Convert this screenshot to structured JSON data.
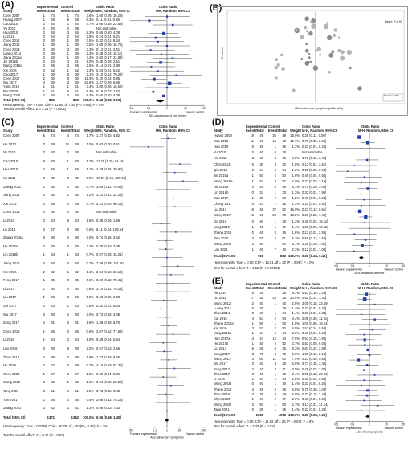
{
  "labels": {
    "A": "(A)",
    "B": "(B)",
    "C": "(C)",
    "D": "(D)",
    "E": "(E)"
  },
  "headers": {
    "study": "Study",
    "experimental": "Experimental",
    "control": "Control",
    "events": "Events",
    "total": "Total",
    "weight": "Weight",
    "or_top": "Odds Ratio",
    "or_sub": "MH, Random, 95% CI",
    "or_sub_d": "M-H, Random, 95% CI",
    "or_sub_e": "M-H, Random, 95% CI"
  },
  "A": {
    "rows": [
      [
        "Chen 2007",
        "1",
        "74",
        "1",
        "74",
        "3.6%",
        "1.00 [0.06, 16.29]"
      ],
      [
        "Huang 2007",
        "1",
        "49",
        "8",
        "49",
        "6.3%",
        "0.11 [0.01, 0.88]"
      ],
      [
        "Cao 2010",
        "2",
        "40",
        "1",
        "40",
        "4.7%",
        "2.05 [0.18, 23.59]"
      ],
      [
        "Yu 2010",
        "0",
        "40",
        "0",
        "38",
        "",
        "Not estimable"
      ],
      [
        "Hua 2010",
        "2",
        "46",
        "3",
        "46",
        "8.3%",
        "0.65 [0.10, 4.08]"
      ],
      [
        "Li 2011",
        "0",
        "44",
        "2",
        "44",
        "2.9%",
        "0.24 [0.01, 5.21]"
      ],
      [
        "Chen 2012",
        "0",
        "30",
        "1",
        "30",
        "3.5%",
        "0.32 [0.01, 8.24]"
      ],
      [
        "Jiang 2012",
        "1",
        "30",
        "1",
        "30",
        "3.5%",
        "1.00 [0.06, 16.76]"
      ],
      [
        "Chen 2013",
        "0",
        "30",
        "3",
        "30",
        "3.3%",
        "0.13 [0.01, 2.61]"
      ],
      [
        "Luang 2014",
        "0",
        "39",
        "1",
        "39",
        "2.4%",
        "0.49 [0.02, 15.11]"
      ],
      [
        "Jiang 2015a",
        "2",
        "50",
        "1",
        "50",
        "4.4%",
        "2.00 [0.17, 22.83]"
      ],
      [
        "Jin 2015b",
        "2",
        "43",
        "4",
        "41",
        "9.0%",
        "0.45 [0.08, 2.61]"
      ],
      [
        "Wang 2015a",
        "0",
        "45",
        "3",
        "45",
        "2.5%",
        "0.14 [0.01, 2.80]"
      ],
      [
        "Xie 2016",
        "0",
        "52",
        "1",
        "52",
        "2.3%",
        "0.33 [0.01, 8.22]"
      ],
      [
        "Cao 2017",
        "1",
        "30",
        "0",
        "30",
        "2.1%",
        "3.10 [0.12, 79.23]"
      ],
      [
        "Chen 2017",
        "2",
        "60",
        "9",
        "60",
        "11.3%",
        "0.20 [0.04, 0.95]"
      ],
      [
        "Wu 2017",
        "4",
        "40",
        "3",
        "40",
        "15.5%",
        "1.37 [0.29, 6.55]"
      ],
      [
        "Yang 2019",
        "1",
        "41",
        "1",
        "41",
        "3.4%",
        "1.00 [0.06, 16.55]"
      ],
      [
        "Ren 2020",
        "1",
        "51",
        "5",
        "51",
        "5.3%",
        "0.18 [0.02, 1.62]"
      ],
      [
        "Wang 2020",
        "2",
        "50",
        "3",
        "50",
        "8.4%",
        "0.65 [0.10, 4.08]"
      ]
    ],
    "total_label": "Total (95% CI)",
    "tot_e": "865",
    "tot_c": "863",
    "tot_w": "100.0%",
    "tot_or": "0.42 [0.25, 0.72]",
    "hetero": "Heterogeneity: Tau² = 0.00; Chi² = 11.90, df = 18 (P = 0.85); I² = 0%",
    "overall": "Test for overall effect: Z = 3.18 (P = 0.001)",
    "fav_exp": "Favours experimental",
    "fav_ctrl": "Favours control",
    "caption": "AEs-drug induced liver injury",
    "axis_ticks": [
      "0.01",
      "0.1",
      "1",
      "10",
      "100"
    ]
  },
  "B": {
    "ylabel": "Precision",
    "xlabel": "AEs-cutaneous symptoms(odds ratio)",
    "annotation": "Egger: P=0.57",
    "legend_title": "Precision (1/SE)"
  },
  "C": {
    "rows": [
      [
        "Chen 2007",
        "5",
        "74",
        "4",
        "74",
        "1.7%",
        "1.27 [0.33, 4.92]"
      ],
      [
        "He 2010",
        "0",
        "39",
        "14",
        "39",
        "1.5%",
        "0.03 [0.00, 0.51]"
      ],
      [
        "Yu 2010",
        "0",
        "40",
        "0",
        "38",
        "",
        "Not estimable"
      ],
      [
        "Cao 2010",
        "9",
        "40",
        "1",
        "40",
        "1.7%",
        "11.29 [1.35, 94.18]"
      ],
      [
        "Hua 2010",
        "4",
        "46",
        "1",
        "46",
        "1.1%",
        "4.29 [0.46, 39.90]"
      ],
      [
        "Xu 2011",
        "8",
        "39",
        "0",
        "39",
        "0.9%",
        "19.57 [1.10, 350.52]"
      ],
      [
        "Zheng 2011",
        "1",
        "60",
        "0",
        "60",
        "0.7%",
        "3.05 [0.12, 76.45]"
      ],
      [
        "Jiang 2012",
        "3",
        "30",
        "1",
        "30",
        "1.2%",
        "3.22 [0.31, 33.29]"
      ],
      [
        "Xie 2012",
        "2",
        "59",
        "0",
        "49",
        "0.7%",
        "4.21 [0.20, 90.15]"
      ],
      [
        "Chen 2013",
        "0",
        "30",
        "0",
        "30",
        "",
        "Not estimable"
      ],
      [
        "Li 2014",
        "2",
        "24",
        "5",
        "24",
        "1.8%",
        "0.35 [0.06, 1.99]"
      ],
      [
        "Lu 2014",
        "2",
        "47",
        "0",
        "46",
        "0.6%",
        "5.11 [0.24, 109.64]"
      ],
      [
        "Zhang 2015a",
        "3",
        "90",
        "4",
        "90",
        "2.0%",
        "0.74 [0.16, 3.42]"
      ],
      [
        "He 2016a",
        "4",
        "45",
        "5",
        "45",
        "2.4%",
        "0.78 [0.20, 3.09]"
      ],
      [
        "Lin 2016b",
        "1",
        "34",
        "1",
        "33",
        "0.7%",
        "0.97 [0.06, 16.21]"
      ],
      [
        "Jiang 2016",
        "3",
        "40",
        "0",
        "40",
        "0.7%",
        "7.56 [0.38, 151.50]"
      ],
      [
        "Xie 2016",
        "2",
        "52",
        "1",
        "52",
        "1.1%",
        "2.04 [0.18, 23.18]"
      ],
      [
        "Feng 2017",
        "1",
        "35",
        "0",
        "35",
        "0.6%",
        "3.09 [0.12, 78.41]"
      ],
      [
        "Li 2017",
        "1",
        "30",
        "0",
        "30",
        "0.6%",
        "3.10 [0.12, 79.23]"
      ],
      [
        "Liu 2017",
        "1",
        "48",
        "2",
        "52",
        "1.0%",
        "0.53 [0.05, 6.08]"
      ],
      [
        "Shi 2017",
        "0",
        "23",
        "1",
        "23",
        "0.6%",
        "0.32 [0.01, 8.25]"
      ],
      [
        "Wu 2017",
        "3",
        "40",
        "4",
        "40",
        "2.0%",
        "0.73 [0.15, 3.48]"
      ],
      [
        "Zeng 2017",
        "4",
        "31",
        "3",
        "31",
        "1.9%",
        "1.38 [0.28, 6.70]"
      ],
      [
        "Chen 2018",
        "1",
        "46",
        "0",
        "46",
        "0.6%",
        "3.07 [0.12, 77.65]"
      ],
      [
        "Li 2018",
        "1",
        "44",
        "2",
        "44",
        "1.0%",
        "0.49 [0.04, 5.64]"
      ],
      [
        "Luo 2018",
        "3",
        "40",
        "5",
        "40",
        "2.2%",
        "0.57 [0.13, 2.56]"
      ],
      [
        "Zhou 2018",
        "4",
        "39",
        "3",
        "39",
        "1.9%",
        "1.37 [0.29, 6.55]"
      ],
      [
        "Hu 2019",
        "2",
        "62",
        "0",
        "49",
        "0.7%",
        "4.10 [0.19, 87.35]"
      ],
      [
        "Chen 2020",
        "1",
        "47",
        "2",
        "47",
        "1.0%",
        "0.49 [0.04, 5.59]"
      ],
      [
        "Wang 2020",
        "2",
        "50",
        "1",
        "50",
        "1.1%",
        "2.04 [0.18, 23.28]"
      ],
      [
        "Tang 2021",
        "3",
        "51",
        "4",
        "51",
        "2.0%",
        "0.73 [0.15, 3.48]"
      ],
      [
        "Yan 2021",
        "1",
        "36",
        "0",
        "36",
        "0.6%",
        "3.08 [0.12, 78.15]"
      ],
      [
        "Zhang 2021",
        "2",
        "42",
        "2",
        "41",
        "1.3%",
        "0.98 [0.13, 7.32]"
      ]
    ],
    "total_label": "Total (95% CI)",
    "tot_e": "1371",
    "tot_c": "1352",
    "tot_w": "100.0%",
    "tot_or": "0.96 [0.66, 1.40]",
    "hetero": "Heterogeneity: Tau² = 0.0398; Chi² = 30.79, df = 30 (P = 0.42); I² = 3%",
    "overall": "Test for overall effect: Z = 0.21 (P = 0.83)",
    "fav_exp": "Favours experimental",
    "fav_ctrl": "Favours control",
    "caption": "AEs-alimentary symptoms",
    "axis_ticks": [
      "0.001",
      "0.1",
      "1",
      "10",
      "1000"
    ]
  },
  "D": {
    "rows": [
      [
        "Huang 2008",
        "19",
        "49",
        "35",
        "49",
        "15.0%",
        "0.25 [0.11, 0.59]"
      ],
      [
        "Cao 2010",
        "11",
        "40",
        "15",
        "40",
        "11.7%",
        "0.79 [0.30, 2.06]"
      ],
      [
        "Hua 2010",
        "0",
        "46",
        "1",
        "46",
        "1.3%",
        "0.33 [0.01, 8.20]"
      ],
      [
        "Yu 2010",
        "0",
        "40",
        "0",
        "38",
        "",
        "Not estimable"
      ],
      [
        "Xie 2012",
        "3",
        "49",
        "4",
        "49",
        "4.5%",
        "0.73 [0.16, 3.48]"
      ],
      [
        "Chen 2013",
        "0",
        "30",
        "3",
        "30",
        "1.6%",
        "0.13 [0.01, 2.61]"
      ],
      [
        "Qiu 2014",
        "0",
        "44",
        "6",
        "44",
        "1.3%",
        "0.05 [0.00, 0.98]"
      ],
      [
        "Jin 2015a",
        "1",
        "50",
        "2",
        "50",
        "1.6%",
        "0.49 [0.04, 5.58]"
      ],
      [
        "Wang 2015a",
        "1",
        "57",
        "3",
        "57",
        "2.0%",
        "0.32 [0.03, 3.19]"
      ],
      [
        "He 2016a",
        "4",
        "45",
        "5",
        "45",
        "5.1%",
        "0.78 [0.20, 3.09]"
      ],
      [
        "Lin 2016b",
        "0",
        "34",
        "1",
        "33",
        "1.3%",
        "0.32 [0.01, 7.99]"
      ],
      [
        "Cao 2017",
        "1",
        "30",
        "2",
        "30",
        "1.8%",
        "0.48 [0.04, 5.63]"
      ],
      [
        "Cheng 2017",
        "0",
        "27",
        "1",
        "28",
        "1.3%",
        "0.33 [0.01, 8.52]"
      ],
      [
        "Liu 2017",
        "19",
        "48",
        "37",
        "52",
        "15.0%",
        "0.27 [0.12, 0.61]"
      ],
      [
        "Wang 2017",
        "15",
        "40",
        "20",
        "40",
        "13.2%",
        "0.60 [0.25, 1.46]"
      ],
      [
        "Ge 2019",
        "0",
        "40",
        "1",
        "40",
        "1.3%",
        "0.49 [0.02, 15.11]"
      ],
      [
        "Yang 2019",
        "1",
        "41",
        "1",
        "41",
        "1.4%",
        "1.00 [0.06, 16.55]"
      ],
      [
        "Zhang 2019",
        "0",
        "45",
        "3",
        "45",
        "1.6%",
        "0.13 [0.01, 2.58]"
      ],
      [
        "Ren 2020",
        "3",
        "51",
        "5",
        "51",
        "5.3%",
        "0.58 [0.13, 2.55]"
      ],
      [
        "Wang 2020",
        "3",
        "50",
        "7",
        "50",
        "6.1%",
        "0.39 [0.09, 1.62]"
      ],
      [
        "Lan 2021",
        "1",
        "40",
        "7",
        "40",
        "2.3%",
        "0.12 [0.01, 1.04]"
      ]
    ],
    "total_label": "Total (95% CI)",
    "tot_e": "901",
    "tot_c": "892",
    "tot_w": "100.0%",
    "tot_or": "0.33 [0.24, 0.46]",
    "hetero": "Heterogeneity: Tau² = 0.00; Chi² = 13.61, df = 20 (P = 0.85); I² = 0%",
    "overall": "Test for overall effect: Z = 6.58 (P < 0.00001)",
    "fav_exp": "Favours experimental",
    "fav_ctrl": "Favours control",
    "caption": "AEs-metabolic disorder",
    "axis_ticks": [
      "0.01",
      "0.1",
      "1",
      "10",
      "100"
    ]
  },
  "E": {
    "rows": [
      [
        "He 2010",
        "5",
        "39",
        "7",
        "39",
        "9.3%",
        "0.67 [0.19, 2.33]"
      ],
      [
        "Liu 2011",
        "17",
        "38",
        "23",
        "38",
        "20.9%",
        "0.53 [0.21, 1.32]"
      ],
      [
        "Wang 2012",
        "2",
        "40",
        "1",
        "40",
        "2.5%",
        "2.05 [0.18, 23.59]"
      ],
      [
        "Luang 2014",
        "0",
        "39",
        "1",
        "39",
        "1.4%",
        "0.33 [0.01, 8.20]"
      ],
      [
        "Zhao 2014",
        "0",
        "49",
        "1",
        "44",
        "1.4%",
        "0.33 [0.01, 8.34]"
      ],
      [
        "Cai 2015",
        "4",
        "54",
        "2",
        "54",
        "4.4%",
        "2.08 [0.36, 11.91]"
      ],
      [
        "Zhang 2015a",
        "1",
        "90",
        "1",
        "90",
        "1.9%",
        "1.00 [0.06, 16.24]"
      ],
      [
        "Xie 2016",
        "3",
        "52",
        "2",
        "52",
        "4.5%",
        "1.53 [0.24, 9.59]"
      ],
      [
        "Yang 2016a",
        "1",
        "44",
        "2",
        "44",
        "2.6%",
        "0.49 [0.04, 5.60]"
      ],
      [
        "Han 2017a",
        "4",
        "24",
        "12",
        "44",
        "7.5%",
        "0.53 [0.15, 1.89]"
      ],
      [
        "He 2017b",
        "1",
        "48",
        "2",
        "52",
        "2.7%",
        "0.53 [0.05, 6.08]"
      ],
      [
        "Liu 2017",
        "5",
        "35",
        "6",
        "35",
        "8.3%",
        "0.81 [0.22, 2.93]"
      ],
      [
        "Song 2017",
        "3",
        "70",
        "3",
        "70",
        "5.3%",
        "1.00 [0.19, 5.13]"
      ],
      [
        "Wang 2017",
        "3",
        "60",
        "11",
        "60",
        "7.4%",
        "0.23 [0.06, 0.89]"
      ],
      [
        "Wu 2017",
        "3",
        "40",
        "4",
        "40",
        "5.5%",
        "0.73 [0.15, 3.48]"
      ],
      [
        "Zeng 2017",
        "2",
        "41",
        "3",
        "31",
        "3.9%",
        "0.48 [0.07, 3.07]"
      ],
      [
        "Zhao 2017",
        "2",
        "40",
        "1",
        "40",
        "2.4%",
        "2.05 [0.18, 23.59]"
      ],
      [
        "Li 2018",
        "1",
        "44",
        "2",
        "44",
        "2.6%",
        "0.49 [0.04, 5.60]"
      ],
      [
        "Wang 2018",
        "0",
        "40",
        "1",
        "40",
        "1.4%",
        "0.33 [0.01, 8.20]"
      ],
      [
        "Zhang 2018",
        "4",
        "46",
        "5",
        "46",
        "6.5%",
        "0.78 [0.20, 3.09]"
      ],
      [
        "Zhou 2018",
        "3",
        "39",
        "4",
        "39",
        "5.5%",
        "0.73 [0.15, 3.48]"
      ],
      [
        "Chen 2020",
        "1",
        "47",
        "2",
        "47",
        "2.6%",
        "0.49 [0.04, 5.59]"
      ],
      [
        "Wang 2020",
        "3",
        "50",
        "1",
        "50",
        "2.7%",
        "3.13 [0.31, 31.14]"
      ],
      [
        "Tang 2021",
        "0",
        "35",
        "1",
        "35",
        "1.4%",
        "0.32 [0.01, 8.23]"
      ]
    ],
    "total_label": "Total (95% CI)",
    "tot_e": "1086",
    "tot_c": "1068",
    "tot_w": "100.0%",
    "tot_or": "0.81 [0.58, 0.96]",
    "hetero": "Heterogeneity: Tau² = 0.00; Chi² = 11.92, df = 23 (P = 0.97); I² = 0%",
    "overall": "Test for overall effect: Z = 2.33 (P = 0.02)",
    "fav_exp": "Favours experimental",
    "fav_ctrl": "Favours control",
    "caption": "AEs-other symptoms",
    "axis_ticks": [
      "0.01",
      "0.1",
      "1",
      "10",
      "100"
    ]
  }
}
